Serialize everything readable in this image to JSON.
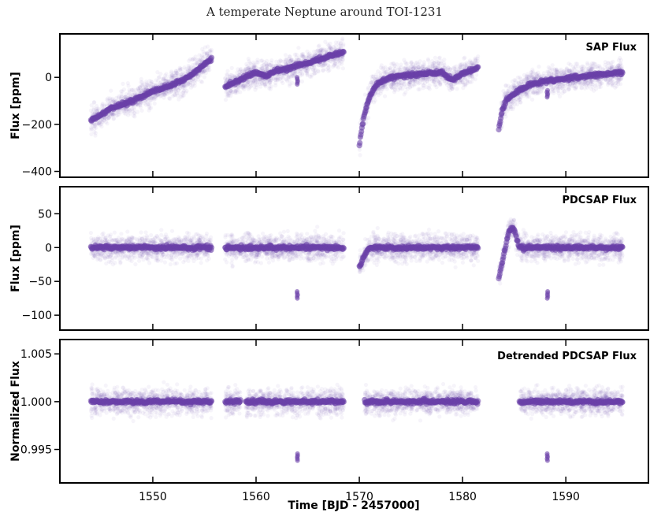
{
  "figure": {
    "title": "A temperate Neptune around TOI-1231",
    "xlabel": "Time [BJD - 2457000]",
    "series_color": "#6a3fa8"
  },
  "chart_data": [
    {
      "type": "scatter",
      "title": "SAP Flux",
      "ylabel": "Flux [ppm]",
      "xlim": [
        1541,
        1598
      ],
      "ylim": [
        -425,
        185
      ],
      "xticks": [
        1550,
        1560,
        1570,
        1580,
        1590
      ],
      "yticks": [
        -400,
        -200,
        0
      ],
      "ytick_labels": [
        "−400",
        "−200",
        "0"
      ],
      "segments": [
        {
          "x": [
            1544,
            1545,
            1546,
            1547,
            1548,
            1549,
            1550,
            1551,
            1552,
            1553,
            1554,
            1555,
            1555.7
          ],
          "y": [
            -185,
            -160,
            -130,
            -115,
            -100,
            -80,
            -60,
            -45,
            -30,
            -10,
            20,
            55,
            80
          ]
        },
        {
          "x": [
            1557,
            1558,
            1559,
            1560,
            1561,
            1562,
            1563,
            1564,
            1565,
            1566,
            1567,
            1568.5
          ],
          "y": [
            -40,
            -20,
            0,
            20,
            5,
            30,
            35,
            50,
            60,
            75,
            90,
            110
          ]
        },
        {
          "x": [
            1570,
            1570.3,
            1570.6,
            1571,
            1571.5,
            1572,
            1573,
            1574,
            1576,
            1578,
            1579,
            1580,
            1581.5
          ],
          "y": [
            -290,
            -200,
            -140,
            -80,
            -40,
            -20,
            0,
            5,
            15,
            20,
            -10,
            15,
            40
          ]
        },
        {
          "x": [
            1583.5,
            1583.8,
            1584.2,
            1584.8,
            1585.5,
            1586.5,
            1587.5,
            1589,
            1591,
            1593,
            1595.5
          ],
          "y": [
            -220,
            -150,
            -100,
            -75,
            -55,
            -30,
            -20,
            -10,
            0,
            10,
            20
          ]
        }
      ],
      "dips": [
        {
          "x": 1564,
          "y": -15
        },
        {
          "x": 1588.2,
          "y": -70
        }
      ]
    },
    {
      "type": "scatter",
      "title": "PDCSAP Flux",
      "ylabel": "Flux [ppm]",
      "xlim": [
        1541,
        1598
      ],
      "ylim": [
        -122,
        90
      ],
      "xticks": [
        1550,
        1560,
        1570,
        1580,
        1590
      ],
      "yticks": [
        -100,
        -50,
        0,
        50
      ],
      "ytick_labels": [
        "−100",
        "−50",
        "0",
        "50"
      ],
      "segments": [
        {
          "x": [
            1544,
            1555.7
          ],
          "y": [
            0,
            0
          ]
        },
        {
          "x": [
            1557,
            1568.5
          ],
          "y": [
            0,
            0
          ]
        },
        {
          "x": [
            1570,
            1570.5,
            1571,
            1581.5
          ],
          "y": [
            -30,
            -10,
            0,
            0
          ]
        },
        {
          "x": [
            1583.5,
            1584,
            1584.5,
            1584.9,
            1585.5,
            1595.5
          ],
          "y": [
            -45,
            -10,
            25,
            30,
            0,
            0
          ]
        }
      ],
      "dips": [
        {
          "x": 1564,
          "y": -70
        },
        {
          "x": 1588.2,
          "y": -70
        }
      ]
    },
    {
      "type": "scatter",
      "title": "Detrended PDCSAP Flux",
      "ylabel": "Normalized Flux",
      "xlim": [
        1541,
        1598
      ],
      "ylim": [
        0.9915,
        1.0065
      ],
      "xticks": [
        1550,
        1560,
        1570,
        1580,
        1590
      ],
      "yticks": [
        0.995,
        1.0,
        1.005
      ],
      "ytick_labels": [
        "0.995",
        "1.000",
        "1.005"
      ],
      "segments": [
        {
          "x": [
            1544,
            1555.7
          ],
          "y": [
            1.0,
            1.0
          ]
        },
        {
          "x": [
            1557,
            1558.5
          ],
          "y": [
            1.0,
            1.0
          ]
        },
        {
          "x": [
            1559,
            1568.5
          ],
          "y": [
            1.0,
            1.0
          ]
        },
        {
          "x": [
            1570.5,
            1581.5
          ],
          "y": [
            1.0,
            1.0
          ]
        },
        {
          "x": [
            1585.5,
            1595.5
          ],
          "y": [
            1.0,
            1.0
          ]
        }
      ],
      "dips": [
        {
          "x": 1564,
          "y": 0.9942
        },
        {
          "x": 1588.2,
          "y": 0.9942
        }
      ]
    }
  ]
}
